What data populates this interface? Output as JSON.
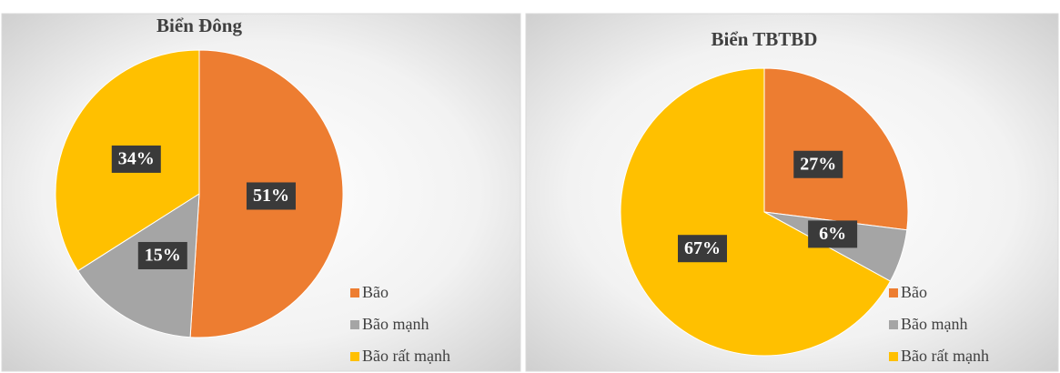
{
  "chart_data": [
    {
      "type": "pie",
      "title": "Biển Đông",
      "categories": [
        "Bão",
        "Bão mạnh",
        "Bão rất mạnh"
      ],
      "values": [
        51,
        15,
        34
      ],
      "value_labels": [
        "51%",
        "15%",
        "34%"
      ],
      "colors": [
        "#ED7D31",
        "#A5A5A5",
        "#FFC000"
      ],
      "legend": "bottom-right"
    },
    {
      "type": "pie",
      "title": "Biển TBTBD",
      "categories": [
        "Bão",
        "Bão mạnh",
        "Bão rất mạnh"
      ],
      "values": [
        27,
        6,
        67
      ],
      "value_labels": [
        "27%",
        "6%",
        "67%"
      ],
      "colors": [
        "#ED7D31",
        "#A5A5A5",
        "#FFC000"
      ],
      "legend": "bottom-right"
    }
  ]
}
